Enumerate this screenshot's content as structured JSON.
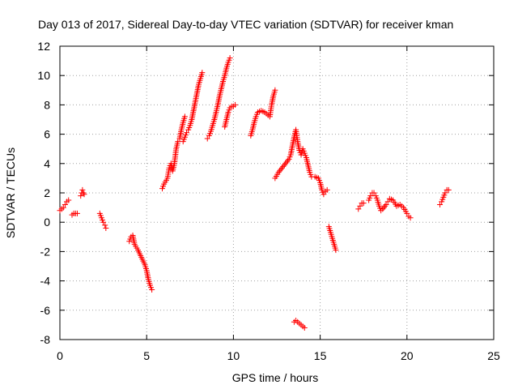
{
  "chart_data": {
    "type": "scatter",
    "title": "Day 013 of 2017, Sidereal Day-to-day VTEC variation (SDTVAR) for receiver kman",
    "xlabel": "GPS time / hours",
    "ylabel": "SDTVAR / TECUs",
    "xlim": [
      0,
      25
    ],
    "ylim": [
      -8,
      12
    ],
    "xticks": [
      0,
      5,
      10,
      15,
      20,
      25
    ],
    "yticks": [
      -8,
      -6,
      -4,
      -2,
      0,
      2,
      4,
      6,
      8,
      10,
      12
    ],
    "grid": true,
    "marker": "+",
    "color": "#ff0000",
    "series": [
      {
        "name": "seg01",
        "points": [
          [
            0.0,
            0.8
          ],
          [
            0.1,
            0.9
          ],
          [
            0.2,
            1.0
          ],
          [
            0.3,
            1.2
          ],
          [
            0.4,
            1.4
          ],
          [
            0.5,
            1.5
          ]
        ]
      },
      {
        "name": "seg02",
        "points": [
          [
            0.7,
            0.5
          ],
          [
            0.8,
            0.6
          ],
          [
            0.9,
            0.6
          ],
          [
            1.0,
            0.6
          ]
        ]
      },
      {
        "name": "seg03",
        "points": [
          [
            1.2,
            1.8
          ],
          [
            1.25,
            2.0
          ],
          [
            1.3,
            2.2
          ],
          [
            1.35,
            2.0
          ],
          [
            1.4,
            1.9
          ]
        ]
      },
      {
        "name": "seg04",
        "points": [
          [
            2.3,
            0.6
          ],
          [
            2.4,
            0.3
          ],
          [
            2.5,
            0.0
          ],
          [
            2.6,
            -0.2
          ],
          [
            2.65,
            -0.4
          ]
        ]
      },
      {
        "name": "seg05",
        "points": [
          [
            4.0,
            -1.3
          ],
          [
            4.1,
            -1.0
          ],
          [
            4.2,
            -0.9
          ],
          [
            4.3,
            -1.5
          ],
          [
            4.5,
            -1.9
          ],
          [
            4.7,
            -2.4
          ],
          [
            4.9,
            -2.9
          ],
          [
            5.0,
            -3.3
          ],
          [
            5.1,
            -3.9
          ],
          [
            5.2,
            -4.3
          ],
          [
            5.3,
            -4.6
          ]
        ]
      },
      {
        "name": "seg06",
        "points": [
          [
            5.9,
            2.3
          ],
          [
            6.0,
            2.6
          ],
          [
            6.2,
            3.0
          ],
          [
            6.3,
            3.7
          ],
          [
            6.4,
            4.0
          ],
          [
            6.5,
            3.5
          ],
          [
            6.6,
            4.0
          ],
          [
            6.7,
            5.0
          ],
          [
            6.8,
            5.5
          ],
          [
            6.9,
            5.7
          ],
          [
            7.0,
            6.3
          ],
          [
            7.1,
            6.8
          ],
          [
            7.2,
            7.2
          ]
        ]
      },
      {
        "name": "seg07",
        "points": [
          [
            7.1,
            5.5
          ],
          [
            7.2,
            5.8
          ],
          [
            7.3,
            6.1
          ],
          [
            7.4,
            6.3
          ],
          [
            7.5,
            6.6
          ],
          [
            7.6,
            7.0
          ],
          [
            7.7,
            7.6
          ],
          [
            7.8,
            8.2
          ],
          [
            7.9,
            8.8
          ],
          [
            8.0,
            9.4
          ],
          [
            8.1,
            9.8
          ],
          [
            8.2,
            10.2
          ]
        ]
      },
      {
        "name": "seg08",
        "points": [
          [
            8.5,
            5.7
          ],
          [
            8.6,
            5.9
          ],
          [
            8.7,
            6.2
          ],
          [
            8.8,
            6.6
          ],
          [
            8.9,
            7.0
          ],
          [
            9.0,
            7.5
          ],
          [
            9.1,
            8.0
          ],
          [
            9.2,
            8.6
          ],
          [
            9.3,
            9.1
          ],
          [
            9.4,
            9.6
          ],
          [
            9.5,
            10.0
          ],
          [
            9.6,
            10.5
          ],
          [
            9.7,
            10.9
          ],
          [
            9.8,
            11.2
          ]
        ]
      },
      {
        "name": "seg09",
        "points": [
          [
            9.5,
            6.5
          ],
          [
            9.6,
            7.0
          ],
          [
            9.7,
            7.5
          ],
          [
            9.8,
            7.8
          ],
          [
            9.9,
            7.9
          ],
          [
            10.0,
            7.9
          ],
          [
            10.1,
            8.0
          ]
        ]
      },
      {
        "name": "seg10",
        "points": [
          [
            11.0,
            5.9
          ],
          [
            11.1,
            6.3
          ],
          [
            11.2,
            6.8
          ],
          [
            11.3,
            7.2
          ],
          [
            11.4,
            7.5
          ],
          [
            11.6,
            7.6
          ],
          [
            11.8,
            7.5
          ],
          [
            12.0,
            7.3
          ],
          [
            12.1,
            7.2
          ],
          [
            12.2,
            8.0
          ],
          [
            12.3,
            8.6
          ],
          [
            12.4,
            9.0
          ]
        ]
      },
      {
        "name": "seg11",
        "points": [
          [
            12.4,
            3.0
          ],
          [
            12.6,
            3.4
          ],
          [
            12.8,
            3.7
          ],
          [
            13.0,
            4.0
          ],
          [
            13.2,
            4.3
          ],
          [
            13.3,
            4.6
          ],
          [
            13.4,
            5.2
          ],
          [
            13.5,
            5.8
          ],
          [
            13.6,
            6.3
          ],
          [
            13.7,
            5.5
          ],
          [
            13.8,
            4.9
          ],
          [
            13.9,
            4.6
          ],
          [
            14.0,
            5.0
          ],
          [
            14.1,
            4.7
          ],
          [
            14.2,
            4.4
          ],
          [
            14.3,
            3.9
          ],
          [
            14.4,
            3.4
          ],
          [
            14.5,
            3.1
          ],
          [
            14.7,
            3.1
          ],
          [
            14.9,
            3.0
          ],
          [
            15.0,
            2.7
          ],
          [
            15.1,
            2.2
          ],
          [
            15.2,
            1.9
          ],
          [
            15.3,
            2.1
          ],
          [
            15.4,
            2.2
          ]
        ]
      },
      {
        "name": "seg12",
        "points": [
          [
            13.5,
            -6.8
          ],
          [
            13.6,
            -6.7
          ],
          [
            13.7,
            -6.8
          ],
          [
            13.8,
            -6.9
          ],
          [
            13.9,
            -7.0
          ],
          [
            14.0,
            -7.1
          ],
          [
            14.1,
            -7.2
          ]
        ]
      },
      {
        "name": "seg13",
        "points": [
          [
            15.5,
            -0.3
          ],
          [
            15.6,
            -0.7
          ],
          [
            15.7,
            -1.1
          ],
          [
            15.8,
            -1.5
          ],
          [
            15.9,
            -1.9
          ]
        ]
      },
      {
        "name": "seg14",
        "points": [
          [
            17.2,
            0.9
          ],
          [
            17.3,
            1.1
          ],
          [
            17.4,
            1.3
          ],
          [
            17.5,
            1.3
          ]
        ]
      },
      {
        "name": "seg15",
        "points": [
          [
            17.8,
            1.5
          ],
          [
            17.9,
            1.8
          ],
          [
            18.0,
            2.0
          ],
          [
            18.1,
            2.0
          ],
          [
            18.2,
            1.8
          ],
          [
            18.3,
            1.5
          ],
          [
            18.4,
            1.1
          ],
          [
            18.5,
            0.8
          ],
          [
            18.6,
            0.9
          ],
          [
            18.8,
            1.2
          ],
          [
            18.9,
            1.4
          ],
          [
            19.0,
            1.6
          ],
          [
            19.2,
            1.5
          ],
          [
            19.4,
            1.1
          ],
          [
            19.6,
            1.2
          ],
          [
            19.8,
            1.0
          ],
          [
            20.0,
            0.6
          ],
          [
            20.1,
            0.4
          ],
          [
            20.2,
            0.3
          ]
        ]
      },
      {
        "name": "seg16",
        "points": [
          [
            21.9,
            1.2
          ],
          [
            22.0,
            1.4
          ],
          [
            22.1,
            1.7
          ],
          [
            22.2,
            2.0
          ],
          [
            22.3,
            2.2
          ],
          [
            22.4,
            2.2
          ]
        ]
      }
    ]
  }
}
